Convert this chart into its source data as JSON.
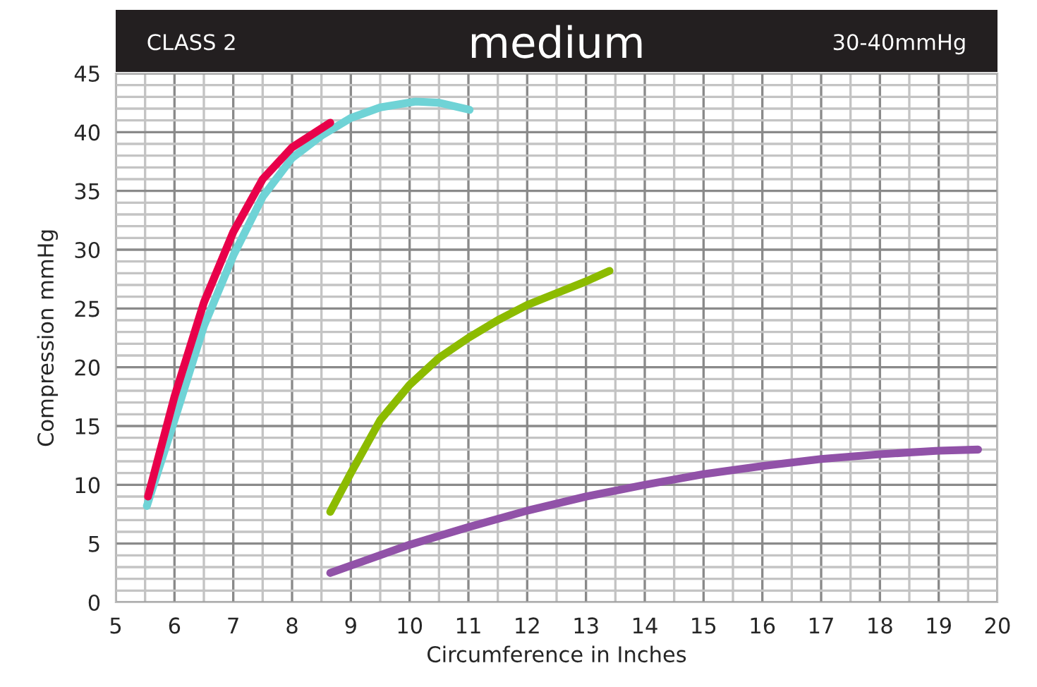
{
  "chart_data": {
    "type": "line",
    "title": "medium",
    "annotations": [
      "CLASS 2",
      "30-40mmHg"
    ],
    "xlabel": "Circumference in Inches",
    "ylabel": "Compression mmHg",
    "xlim": [
      5,
      20
    ],
    "xticks": [
      5,
      6,
      7,
      8,
      9,
      10,
      11,
      12,
      13,
      14,
      15,
      16,
      17,
      18,
      19,
      20
    ],
    "ylim": [
      0,
      45
    ],
    "yticks": [
      0,
      5,
      10,
      15,
      20,
      25,
      30,
      35,
      40,
      45
    ],
    "grid": true,
    "marker": "none",
    "line_style": "solid",
    "series": [
      {
        "color": "#6fd3d6",
        "x": [
          5.53,
          6.0,
          6.5,
          7.0,
          7.5,
          8.0,
          8.5,
          9.0,
          9.5,
          10.1,
          10.5,
          11.02
        ],
        "values": [
          8.2,
          15.5,
          23.5,
          29.5,
          34.5,
          37.8,
          39.7,
          41.2,
          42.1,
          42.6,
          42.5,
          41.9
        ]
      },
      {
        "color": "#e8004a",
        "x": [
          5.55,
          6.0,
          6.5,
          7.0,
          7.5,
          8.0,
          8.65
        ],
        "values": [
          9.0,
          17.5,
          25.5,
          31.5,
          36.0,
          38.7,
          40.8
        ]
      },
      {
        "color": "#8cbb00",
        "x": [
          8.65,
          9.0,
          9.5,
          10.0,
          10.5,
          11.0,
          11.5,
          12.0,
          12.5,
          13.0,
          13.4
        ],
        "values": [
          7.7,
          11.0,
          15.5,
          18.5,
          20.8,
          22.5,
          24.0,
          25.3,
          26.3,
          27.3,
          28.2
        ]
      },
      {
        "color": "#9152a8",
        "x": [
          8.65,
          10,
          11,
          12,
          13,
          14,
          15,
          16,
          17,
          18,
          19,
          19.67
        ],
        "values": [
          2.5,
          4.9,
          6.4,
          7.8,
          9.0,
          10.0,
          10.9,
          11.6,
          12.2,
          12.6,
          12.9,
          13.0
        ]
      }
    ]
  }
}
